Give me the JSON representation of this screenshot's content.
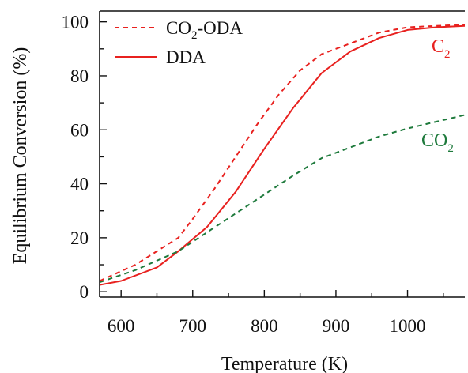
{
  "chart_data": {
    "type": "line",
    "xlabel": "Temperature (K)",
    "ylabel": "Equilibrium Conversion (%)",
    "xlim": [
      570,
      1080
    ],
    "ylim": [
      -2,
      104
    ],
    "x_ticks": [
      600,
      700,
      800,
      900,
      1000
    ],
    "y_ticks": [
      0,
      20,
      40,
      60,
      80,
      100
    ],
    "x_tick_labels": [
      "600",
      "700",
      "800",
      "900",
      "1000"
    ],
    "y_tick_labels": [
      "0",
      "20",
      "40",
      "60",
      "80",
      "100"
    ],
    "grid": false,
    "legend_position": "top-left",
    "colors": {
      "red": "#e8211f",
      "green": "#1e7a3c",
      "axis": "#111111"
    },
    "legend": [
      {
        "label_main": "CO",
        "label_sub": "2",
        "label_tail": "-ODA",
        "style": "dashed"
      },
      {
        "label_main": "DDA",
        "label_sub": "",
        "label_tail": "",
        "style": "solid"
      }
    ],
    "annotations": [
      {
        "main": "C",
        "sub": "2"
      },
      {
        "main": "CO",
        "sub": "2"
      }
    ],
    "series": [
      {
        "group": "CO2-ODA",
        "species": "C2",
        "color": "red",
        "style": "dashed",
        "points": [
          [
            570,
            4
          ],
          [
            620,
            10
          ],
          [
            650,
            15
          ],
          [
            680,
            20
          ],
          [
            700,
            27
          ],
          [
            730,
            38
          ],
          [
            760,
            50
          ],
          [
            790,
            62
          ],
          [
            820,
            73
          ],
          [
            850,
            82
          ],
          [
            880,
            88
          ],
          [
            920,
            92
          ],
          [
            960,
            96
          ],
          [
            1000,
            98
          ],
          [
            1040,
            98.5
          ],
          [
            1080,
            99
          ]
        ]
      },
      {
        "group": "DDA",
        "species": "C2",
        "color": "red",
        "style": "solid",
        "points": [
          [
            570,
            2.5
          ],
          [
            600,
            4
          ],
          [
            650,
            9
          ],
          [
            680,
            15
          ],
          [
            720,
            24
          ],
          [
            760,
            37
          ],
          [
            800,
            53
          ],
          [
            840,
            68
          ],
          [
            880,
            81
          ],
          [
            920,
            89
          ],
          [
            960,
            94
          ],
          [
            1000,
            97
          ],
          [
            1040,
            98
          ],
          [
            1080,
            98.5
          ]
        ]
      },
      {
        "group": "CO2-ODA",
        "species": "CO2",
        "color": "green",
        "style": "dashed",
        "points": [
          [
            570,
            3.5
          ],
          [
            620,
            8
          ],
          [
            680,
            15
          ],
          [
            720,
            22
          ],
          [
            760,
            29
          ],
          [
            800,
            36
          ],
          [
            840,
            43
          ],
          [
            880,
            49.5
          ],
          [
            920,
            53.5
          ],
          [
            960,
            57.5
          ],
          [
            1000,
            60.5
          ],
          [
            1040,
            63
          ],
          [
            1080,
            65.5
          ]
        ]
      }
    ]
  }
}
